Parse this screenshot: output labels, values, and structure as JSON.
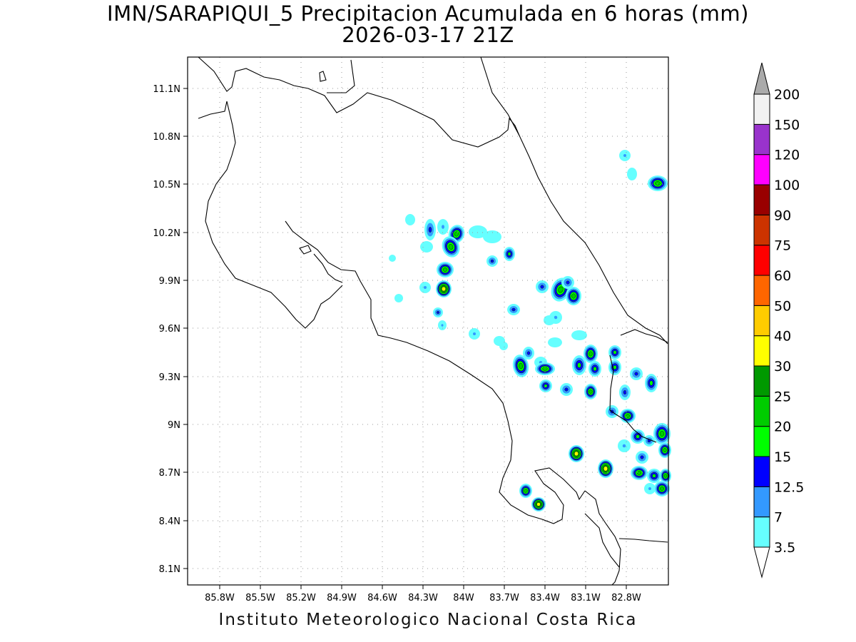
{
  "title": {
    "line1": "IMN/SARAPIQUI_5 Precipitacion Acumulada en 6 horas (mm)",
    "line2": "2026-03-17 21Z"
  },
  "footer": "Instituto Meteorologico Nacional Costa Rica",
  "map": {
    "lon_range": [
      -86.0,
      -83.0
    ],
    "lat_range": [
      8.0,
      11.2
    ],
    "x_ticks": [
      "85.8W",
      "85.5W",
      "85.2W",
      "84.9W",
      "84.6W",
      "84.3W",
      "84W",
      "83.7W",
      "83.4W",
      "83.1W",
      "82.8W"
    ],
    "y_ticks": [
      "11.1N",
      "10.8N",
      "10.5N",
      "10.2N",
      "9.9N",
      "9.6N",
      "9.3N",
      "9N",
      "8.7N",
      "8.4N",
      "8.1N"
    ],
    "grid": "dotted"
  },
  "colorbar": {
    "levels": [
      "3.5",
      "7",
      "12.5",
      "15",
      "20",
      "25",
      "30",
      "40",
      "50",
      "60",
      "75",
      "90",
      "100",
      "120",
      "150",
      "200"
    ],
    "colors": [
      "#66ffff",
      "#3399ff",
      "#0000ff",
      "#00ff00",
      "#00cc00",
      "#009900",
      "#ffff00",
      "#ffcc00",
      "#ff6600",
      "#ff0000",
      "#cc3300",
      "#990000",
      "#ff00ff",
      "#9933cc",
      "#f2f2f2",
      "#aaaaaa"
    ]
  }
}
